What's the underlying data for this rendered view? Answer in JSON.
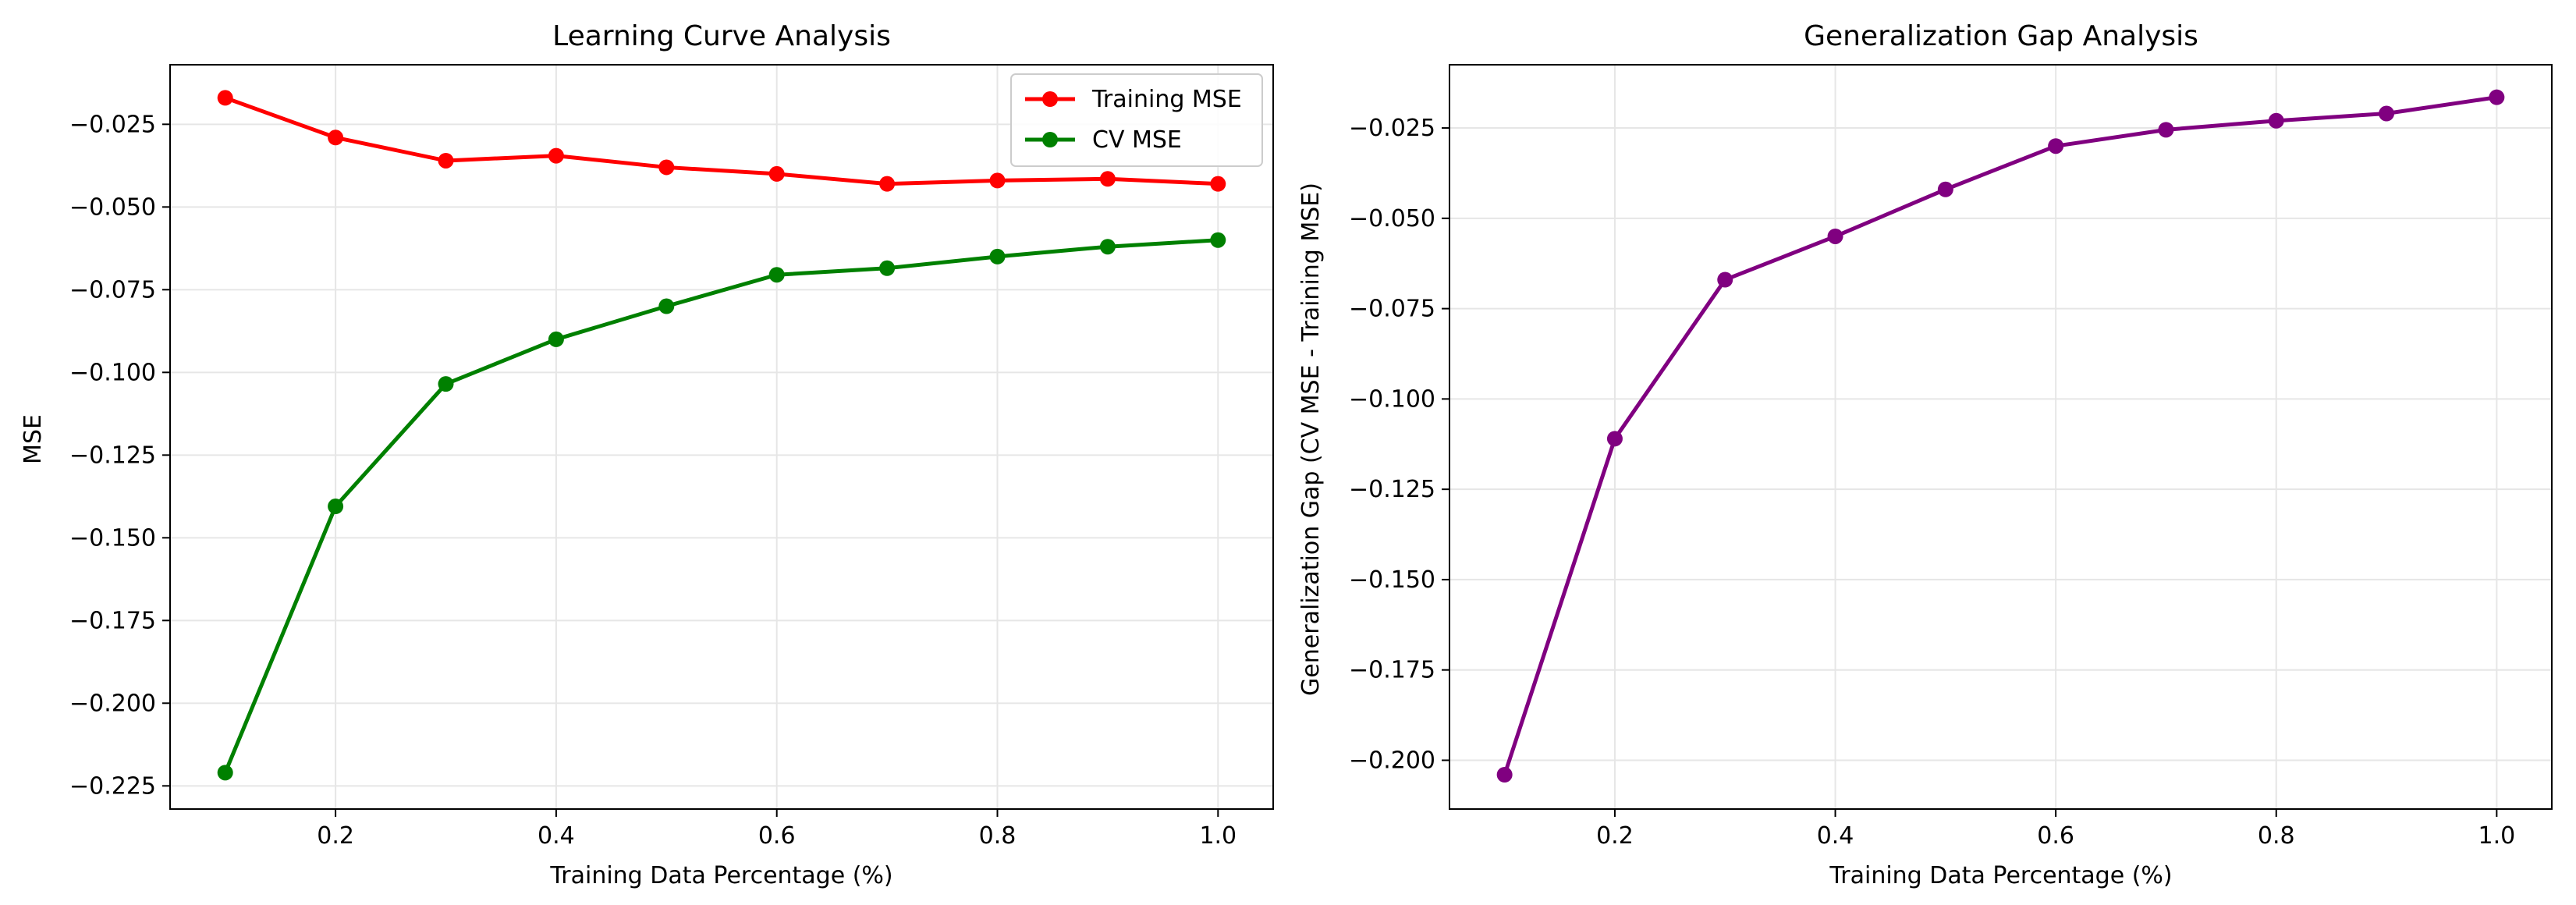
{
  "chart_data": [
    {
      "type": "line",
      "title": "Learning Curve Analysis",
      "xlabel": "Training Data Percentage (%)",
      "ylabel": "MSE",
      "xlim": [
        0.05,
        1.05
      ],
      "ylim": [
        -0.232,
        -0.007
      ],
      "xticks": [
        0.2,
        0.4,
        0.6,
        0.8,
        1.0
      ],
      "xtick_labels": [
        "0.2",
        "0.4",
        "0.6",
        "0.8",
        "1.0"
      ],
      "yticks": [
        -0.025,
        -0.05,
        -0.075,
        -0.1,
        -0.125,
        -0.15,
        -0.175,
        -0.2,
        -0.225
      ],
      "ytick_labels": [
        "−0.025",
        "−0.050",
        "−0.075",
        "−0.100",
        "−0.125",
        "−0.150",
        "−0.175",
        "−0.200",
        "−0.225"
      ],
      "grid": true,
      "legend_position": "top-right",
      "x": [
        0.1,
        0.2,
        0.3,
        0.4,
        0.5,
        0.6,
        0.7,
        0.8,
        0.9,
        1.0
      ],
      "series": [
        {
          "name": "Training MSE",
          "color": "#ff0000",
          "values": [
            -0.017,
            -0.029,
            -0.036,
            -0.0345,
            -0.038,
            -0.04,
            -0.043,
            -0.042,
            -0.0415,
            -0.043
          ]
        },
        {
          "name": "CV MSE",
          "color": "#008000",
          "values": [
            -0.221,
            -0.1405,
            -0.1035,
            -0.09,
            -0.08,
            -0.0705,
            -0.0685,
            -0.065,
            -0.062,
            -0.06
          ]
        }
      ]
    },
    {
      "type": "line",
      "title": "Generalization Gap Analysis",
      "xlabel": "Training Data Percentage (%)",
      "ylabel": "Generalization Gap (CV MSE - Training MSE)",
      "xlim": [
        0.05,
        1.05
      ],
      "ylim": [
        -0.2135,
        -0.0075
      ],
      "xticks": [
        0.2,
        0.4,
        0.6,
        0.8,
        1.0
      ],
      "xtick_labels": [
        "0.2",
        "0.4",
        "0.6",
        "0.8",
        "1.0"
      ],
      "yticks": [
        -0.025,
        -0.05,
        -0.075,
        -0.1,
        -0.125,
        -0.15,
        -0.175,
        -0.2
      ],
      "ytick_labels": [
        "−0.025",
        "−0.050",
        "−0.075",
        "−0.100",
        "−0.125",
        "−0.150",
        "−0.175",
        "−0.200"
      ],
      "grid": true,
      "legend_position": "none",
      "x": [
        0.1,
        0.2,
        0.3,
        0.4,
        0.5,
        0.6,
        0.7,
        0.8,
        0.9,
        1.0
      ],
      "series": [
        {
          "name": "Generalization Gap",
          "color": "#800080",
          "values": [
            -0.204,
            -0.111,
            -0.067,
            -0.055,
            -0.042,
            -0.03,
            -0.0255,
            -0.023,
            -0.021,
            -0.0165
          ]
        }
      ]
    }
  ]
}
